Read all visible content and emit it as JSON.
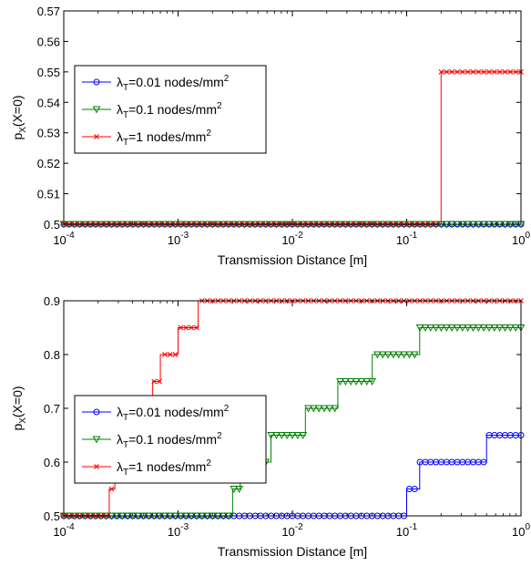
{
  "chart_data": [
    {
      "type": "line",
      "xlabel": "Transmission Distance [m]",
      "ylabel": "p_X(X=0)",
      "xscale": "log",
      "xlim": [
        0.0001,
        1
      ],
      "ylim": [
        0.5,
        0.57
      ],
      "xticks": [
        {
          "base": "10",
          "exp": "-4",
          "value": 0.0001
        },
        {
          "base": "10",
          "exp": "-3",
          "value": 0.001
        },
        {
          "base": "10",
          "exp": "-2",
          "value": 0.01
        },
        {
          "base": "10",
          "exp": "-1",
          "value": 0.1
        },
        {
          "base": "10",
          "exp": "0",
          "value": 1
        }
      ],
      "yticks": [
        "0.5",
        "0.51",
        "0.52",
        "0.53",
        "0.54",
        "0.55",
        "0.56",
        "0.57"
      ],
      "legend_position": "upper-left",
      "series": [
        {
          "name": "λT=0.01 nodes/mm2",
          "color": "#0000ff",
          "marker": "circle",
          "points": [
            [
              0.0001,
              0.5
            ],
            [
              1,
              0.5
            ]
          ]
        },
        {
          "name": "λT=0.1 nodes/mm2",
          "color": "#008000",
          "marker": "triangle-down",
          "points": [
            [
              0.0001,
              0.5
            ],
            [
              1,
              0.5
            ]
          ]
        },
        {
          "name": "λT=1 nodes/mm2",
          "color": "#ff0000",
          "marker": "x",
          "points": [
            [
              0.0001,
              0.5
            ],
            [
              0.2,
              0.5
            ],
            [
              0.2,
              0.55
            ],
            [
              1,
              0.55
            ]
          ]
        }
      ]
    },
    {
      "type": "line",
      "xlabel": "Transmission Distance [m]",
      "ylabel": "p_X(X=0)",
      "xscale": "log",
      "xlim": [
        0.0001,
        1
      ],
      "ylim": [
        0.5,
        0.9
      ],
      "xticks": [
        {
          "base": "10",
          "exp": "-4",
          "value": 0.0001
        },
        {
          "base": "10",
          "exp": "-3",
          "value": 0.001
        },
        {
          "base": "10",
          "exp": "-2",
          "value": 0.01
        },
        {
          "base": "10",
          "exp": "-1",
          "value": 0.1
        },
        {
          "base": "10",
          "exp": "0",
          "value": 1
        }
      ],
      "yticks": [
        "0.5",
        "0.6",
        "0.7",
        "0.8",
        "0.9"
      ],
      "legend_position": "lower-left",
      "series": [
        {
          "name": "λT=0.01 nodes/mm2",
          "color": "#0000ff",
          "marker": "circle",
          "points": [
            [
              0.0001,
              0.5
            ],
            [
              0.1,
              0.5
            ],
            [
              0.1,
              0.55
            ],
            [
              0.13,
              0.55
            ],
            [
              0.13,
              0.6
            ],
            [
              0.5,
              0.6
            ],
            [
              0.5,
              0.65
            ],
            [
              1,
              0.65
            ]
          ]
        },
        {
          "name": "λT=0.1 nodes/mm2",
          "color": "#008000",
          "marker": "triangle-down",
          "points": [
            [
              0.0001,
              0.5
            ],
            [
              0.003,
              0.5
            ],
            [
              0.003,
              0.55
            ],
            [
              0.0035,
              0.55
            ],
            [
              0.0035,
              0.6
            ],
            [
              0.0065,
              0.6
            ],
            [
              0.0065,
              0.65
            ],
            [
              0.013,
              0.65
            ],
            [
              0.013,
              0.7
            ],
            [
              0.025,
              0.7
            ],
            [
              0.025,
              0.75
            ],
            [
              0.05,
              0.75
            ],
            [
              0.05,
              0.8
            ],
            [
              0.13,
              0.8
            ],
            [
              0.13,
              0.85
            ],
            [
              1,
              0.85
            ]
          ]
        },
        {
          "name": "λT=1 nodes/mm2",
          "color": "#ff0000",
          "marker": "x",
          "points": [
            [
              0.0001,
              0.5
            ],
            [
              0.00025,
              0.5
            ],
            [
              0.00025,
              0.55
            ],
            [
              0.00028,
              0.55
            ],
            [
              0.00028,
              0.6
            ],
            [
              0.00045,
              0.6
            ],
            [
              0.00045,
              0.65
            ],
            [
              0.0005,
              0.65
            ],
            [
              0.0005,
              0.7
            ],
            [
              0.0006,
              0.7
            ],
            [
              0.0006,
              0.75
            ],
            [
              0.0007,
              0.75
            ],
            [
              0.0007,
              0.8
            ],
            [
              0.001,
              0.8
            ],
            [
              0.001,
              0.85
            ],
            [
              0.0015,
              0.85
            ],
            [
              0.0015,
              0.9
            ],
            [
              1,
              0.9
            ]
          ]
        }
      ]
    }
  ]
}
